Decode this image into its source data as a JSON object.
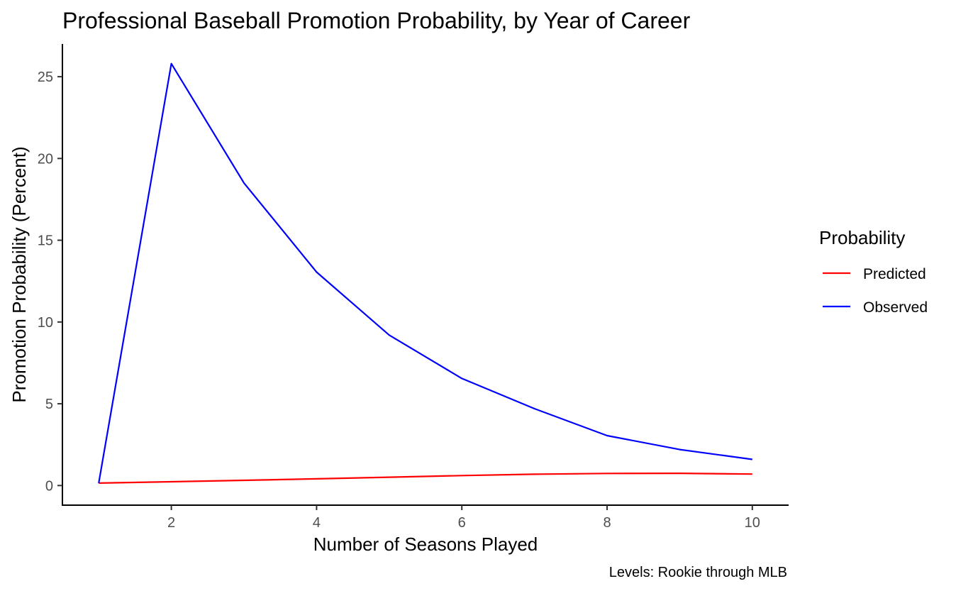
{
  "chart_data": {
    "type": "line",
    "title": "Professional Baseball Promotion Probability, by Year of Career",
    "xlabel": "Number of Seasons Played",
    "ylabel": "Promotion Probability (Percent)",
    "caption": "Levels: Rookie through MLB",
    "xlim": [
      0.5,
      10.5
    ],
    "ylim": [
      -1.2,
      27
    ],
    "x_ticks": [
      2,
      4,
      6,
      8,
      10
    ],
    "y_ticks": [
      0,
      5,
      10,
      15,
      20,
      25
    ],
    "x_tick_labels": [
      "2",
      "4",
      "6",
      "8",
      "10"
    ],
    "y_tick_labels": [
      "0",
      "5",
      "10",
      "15",
      "20",
      "25"
    ],
    "grid": false,
    "legend": {
      "title": "Probability",
      "placement": "right",
      "entries": [
        "Predicted",
        "Observed"
      ]
    },
    "x": [
      1,
      2,
      3,
      4,
      5,
      6,
      7,
      8,
      9,
      10
    ],
    "series": [
      {
        "name": "Predicted",
        "color": "#ff0000",
        "values": [
          0.15,
          0.23,
          0.32,
          0.41,
          0.51,
          0.61,
          0.69,
          0.74,
          0.75,
          0.7
        ]
      },
      {
        "name": "Observed",
        "color": "#0000ff",
        "values": [
          0.15,
          25.8,
          18.5,
          13.05,
          9.2,
          6.55,
          4.7,
          3.05,
          2.2,
          1.6
        ]
      }
    ]
  }
}
